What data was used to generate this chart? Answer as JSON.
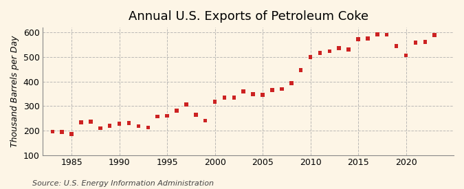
{
  "title": "Annual U.S. Exports of Petroleum Coke",
  "ylabel": "Thousand Barrels per Day",
  "source": "Source: U.S. Energy Information Administration",
  "years": [
    1983,
    1984,
    1985,
    1986,
    1987,
    1988,
    1989,
    1990,
    1991,
    1992,
    1993,
    1994,
    1995,
    1996,
    1997,
    1998,
    1999,
    2000,
    2001,
    2002,
    2003,
    2004,
    2005,
    2006,
    2007,
    2008,
    2009,
    2010,
    2011,
    2012,
    2013,
    2014,
    2015,
    2016,
    2017,
    2018,
    2019,
    2020,
    2021,
    2022,
    2023
  ],
  "values": [
    196,
    194,
    186,
    234,
    237,
    210,
    220,
    228,
    230,
    218,
    213,
    257,
    260,
    281,
    307,
    265,
    240,
    318,
    335,
    335,
    360,
    348,
    345,
    365,
    370,
    393,
    447,
    500,
    517,
    524,
    536,
    531,
    573,
    575,
    593,
    591,
    544,
    507,
    558,
    562,
    589
  ],
  "marker_color": "#cc2222",
  "marker": "s",
  "marker_size": 16,
  "bg_color": "#fdf5e6",
  "plot_bg_color": "#fdf5e6",
  "grid_color": "#aaaaaa",
  "ylim": [
    100,
    620
  ],
  "yticks": [
    100,
    200,
    300,
    400,
    500,
    600
  ],
  "xlim": [
    1982,
    2025
  ],
  "xticks": [
    1985,
    1990,
    1995,
    2000,
    2005,
    2010,
    2015,
    2020
  ],
  "title_fontsize": 13,
  "label_fontsize": 9,
  "tick_fontsize": 9,
  "source_fontsize": 8
}
